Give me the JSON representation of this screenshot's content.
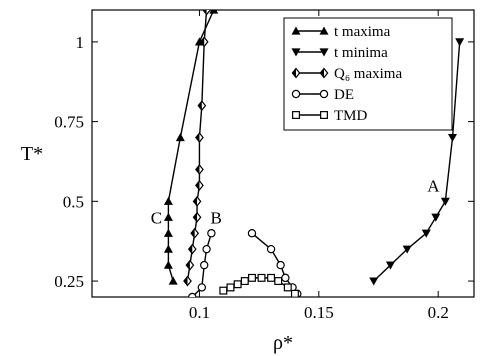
{
  "chart_data": {
    "type": "line",
    "xlabel": "ρ*",
    "ylabel": "T*",
    "xlim": [
      0.055,
      0.215
    ],
    "ylim": [
      0.2,
      1.1
    ],
    "xticks": [
      0.1,
      0.15,
      0.2
    ],
    "xtick_labels": [
      "0.1",
      "0.15",
      "0.2"
    ],
    "yticks": [
      0.25,
      0.5,
      0.75,
      1.0
    ],
    "ytick_labels": [
      "0.25",
      "0.5",
      "0.75",
      "1"
    ],
    "grid": false,
    "legend_position": "top-right",
    "series": [
      {
        "name": "t maxima",
        "marker": "triangle-up",
        "points": [
          [
            0.089,
            0.25
          ],
          [
            0.087,
            0.3
          ],
          [
            0.087,
            0.35
          ],
          [
            0.087,
            0.4
          ],
          [
            0.087,
            0.45
          ],
          [
            0.087,
            0.5
          ],
          [
            0.092,
            0.7
          ],
          [
            0.1,
            1.0
          ],
          [
            0.106,
            1.1
          ]
        ]
      },
      {
        "name": "t minima",
        "marker": "triangle-down",
        "points": [
          [
            0.173,
            0.25
          ],
          [
            0.18,
            0.3
          ],
          [
            0.187,
            0.35
          ],
          [
            0.195,
            0.4
          ],
          [
            0.199,
            0.45
          ],
          [
            0.203,
            0.5
          ],
          [
            0.206,
            0.7
          ],
          [
            0.209,
            1.0
          ]
        ]
      },
      {
        "name": "Q₆ maxima",
        "marker": "diamond",
        "points": [
          [
            0.095,
            0.25
          ],
          [
            0.096,
            0.3
          ],
          [
            0.097,
            0.35
          ],
          [
            0.098,
            0.4
          ],
          [
            0.099,
            0.45
          ],
          [
            0.099,
            0.5
          ],
          [
            0.1,
            0.55
          ],
          [
            0.1,
            0.6
          ],
          [
            0.1,
            0.7
          ],
          [
            0.101,
            0.8
          ],
          [
            0.102,
            1.0
          ],
          [
            0.103,
            1.1
          ]
        ]
      },
      {
        "name": "DE",
        "marker": "circle",
        "points_a": [
          [
            0.097,
            0.2
          ],
          [
            0.101,
            0.23
          ],
          [
            0.102,
            0.3
          ],
          [
            0.103,
            0.35
          ],
          [
            0.105,
            0.4
          ]
        ],
        "points_b": [
          [
            0.122,
            0.4
          ],
          [
            0.13,
            0.35
          ],
          [
            0.134,
            0.3
          ],
          [
            0.136,
            0.26
          ],
          [
            0.139,
            0.23
          ],
          [
            0.141,
            0.21
          ]
        ]
      },
      {
        "name": "TMD",
        "marker": "square",
        "points": [
          [
            0.11,
            0.22
          ],
          [
            0.113,
            0.23
          ],
          [
            0.116,
            0.24
          ],
          [
            0.119,
            0.25
          ],
          [
            0.122,
            0.26
          ],
          [
            0.126,
            0.26
          ],
          [
            0.13,
            0.26
          ],
          [
            0.133,
            0.25
          ],
          [
            0.137,
            0.23
          ],
          [
            0.14,
            0.21
          ]
        ]
      }
    ],
    "annotations": [
      {
        "text": "C",
        "x": 0.082,
        "y": 0.45
      },
      {
        "text": "B",
        "x": 0.107,
        "y": 0.45
      },
      {
        "text": "A",
        "x": 0.198,
        "y": 0.55
      }
    ]
  }
}
